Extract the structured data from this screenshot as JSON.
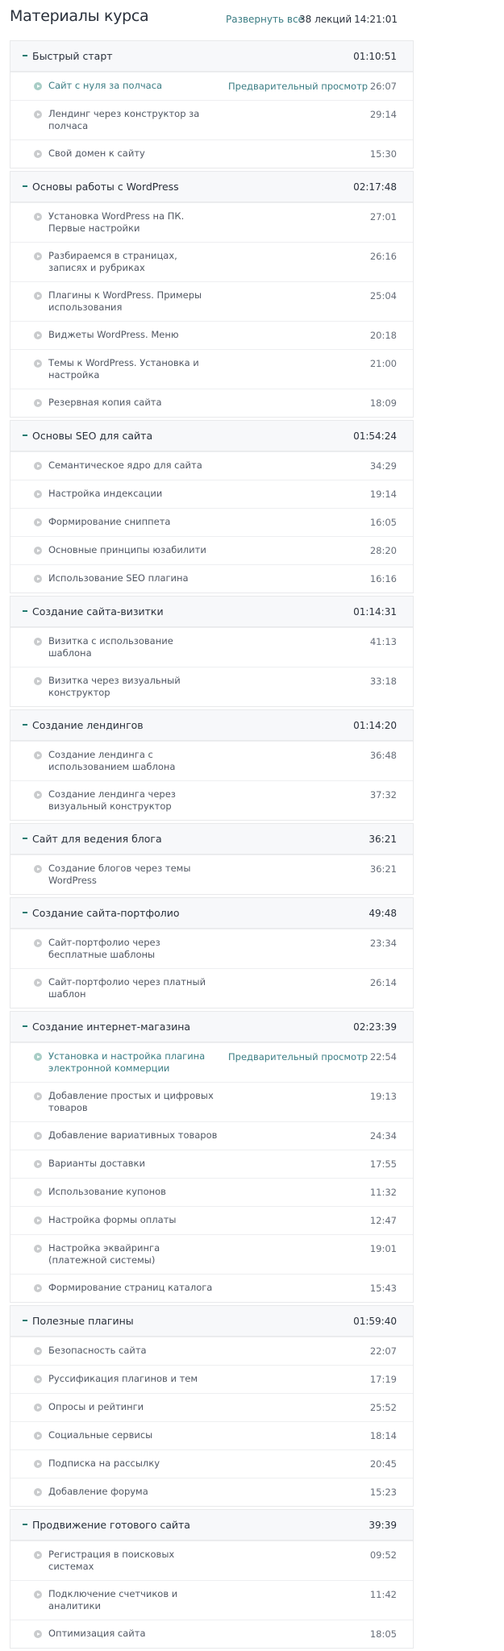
{
  "header": {
    "title": "Материалы курса",
    "expand_all": "Развернуть все",
    "lectures_count": "38 лекций",
    "total_duration": "14:21:01"
  },
  "preview_label": "Предварительный просмотр",
  "colors": {
    "accent": "#3a7c83",
    "section_bg": "#f7f8fa"
  },
  "sections": [
    {
      "title": "Быстрый старт",
      "duration": "01:10:51",
      "lessons": [
        {
          "title": "Сайт с нуля за полчаса",
          "duration": "26:07",
          "preview": true
        },
        {
          "title": "Лендинг через конструктор за полчаса",
          "duration": "29:14"
        },
        {
          "title": "Свой домен к сайту",
          "duration": "15:30"
        }
      ]
    },
    {
      "title": "Основы работы с WordPress",
      "duration": "02:17:48",
      "lessons": [
        {
          "title": "Установка WordPress на ПК. Первые настройки",
          "duration": "27:01"
        },
        {
          "title": "Разбираемся в страницах, записях и рубриках",
          "duration": "26:16"
        },
        {
          "title": "Плагины к WordPress. Примеры использования",
          "duration": "25:04"
        },
        {
          "title": "Виджеты WordPress. Меню",
          "duration": "20:18"
        },
        {
          "title": "Темы к WordPress. Установка и настройка",
          "duration": "21:00"
        },
        {
          "title": "Резервная копия сайта",
          "duration": "18:09"
        }
      ]
    },
    {
      "title": "Основы SEO для сайта",
      "duration": "01:54:24",
      "lessons": [
        {
          "title": "Семантическое ядро для сайта",
          "duration": "34:29"
        },
        {
          "title": "Настройка индексации",
          "duration": "19:14"
        },
        {
          "title": "Формирование сниппета",
          "duration": "16:05"
        },
        {
          "title": "Основные принципы юзабилити",
          "duration": "28:20"
        },
        {
          "title": "Использование SEO плагина",
          "duration": "16:16"
        }
      ]
    },
    {
      "title": "Создание сайта-визитки",
      "duration": "01:14:31",
      "lessons": [
        {
          "title": "Визитка с использование шаблона",
          "duration": "41:13"
        },
        {
          "title": "Визитка через визуальный конструктор",
          "duration": "33:18"
        }
      ]
    },
    {
      "title": "Создание лендингов",
      "duration": "01:14:20",
      "lessons": [
        {
          "title": "Создание лендинга с использованием шаблона",
          "duration": "36:48"
        },
        {
          "title": "Создание лендинга через визуальный конструктор",
          "duration": "37:32"
        }
      ]
    },
    {
      "title": "Сайт для ведения блога",
      "duration": "36:21",
      "lessons": [
        {
          "title": "Создание блогов через темы WordPress",
          "duration": "36:21"
        }
      ]
    },
    {
      "title": "Создание сайта-портфолио",
      "duration": "49:48",
      "lessons": [
        {
          "title": "Сайт-портфолио через бесплатные шаблоны",
          "duration": "23:34"
        },
        {
          "title": "Сайт-портфолио через платный шаблон",
          "duration": "26:14"
        }
      ]
    },
    {
      "title": "Создание интернет-магазина",
      "duration": "02:23:39",
      "lessons": [
        {
          "title": "Установка и настройка плагина электронной коммерции",
          "duration": "22:54",
          "preview": true
        },
        {
          "title": "Добавление простых и цифровых товаров",
          "duration": "19:13"
        },
        {
          "title": "Добавление вариативных товаров",
          "duration": "24:34"
        },
        {
          "title": "Варианты доставки",
          "duration": "17:55"
        },
        {
          "title": "Использование купонов",
          "duration": "11:32"
        },
        {
          "title": "Настройка формы оплаты",
          "duration": "12:47"
        },
        {
          "title": "Настройка эквайринга (платежной системы)",
          "duration": "19:01"
        },
        {
          "title": "Формирование страниц каталога",
          "duration": "15:43"
        }
      ]
    },
    {
      "title": "Полезные плагины",
      "duration": "01:59:40",
      "lessons": [
        {
          "title": "Безопасность сайта",
          "duration": "22:07"
        },
        {
          "title": "Руссификация плагинов и тем",
          "duration": "17:19"
        },
        {
          "title": "Опросы и рейтинги",
          "duration": "25:52"
        },
        {
          "title": "Социальные сервисы",
          "duration": "18:14"
        },
        {
          "title": "Подписка на рассылку",
          "duration": "20:45"
        },
        {
          "title": "Добавление форума",
          "duration": "15:23"
        }
      ]
    },
    {
      "title": "Продвижение готового сайта",
      "duration": "39:39",
      "lessons": [
        {
          "title": "Регистрация в поисковых системах",
          "duration": "09:52"
        },
        {
          "title": "Подключение счетчиков и аналитики",
          "duration": "11:42"
        },
        {
          "title": "Оптимизация сайта",
          "duration": "18:05"
        }
      ]
    }
  ]
}
